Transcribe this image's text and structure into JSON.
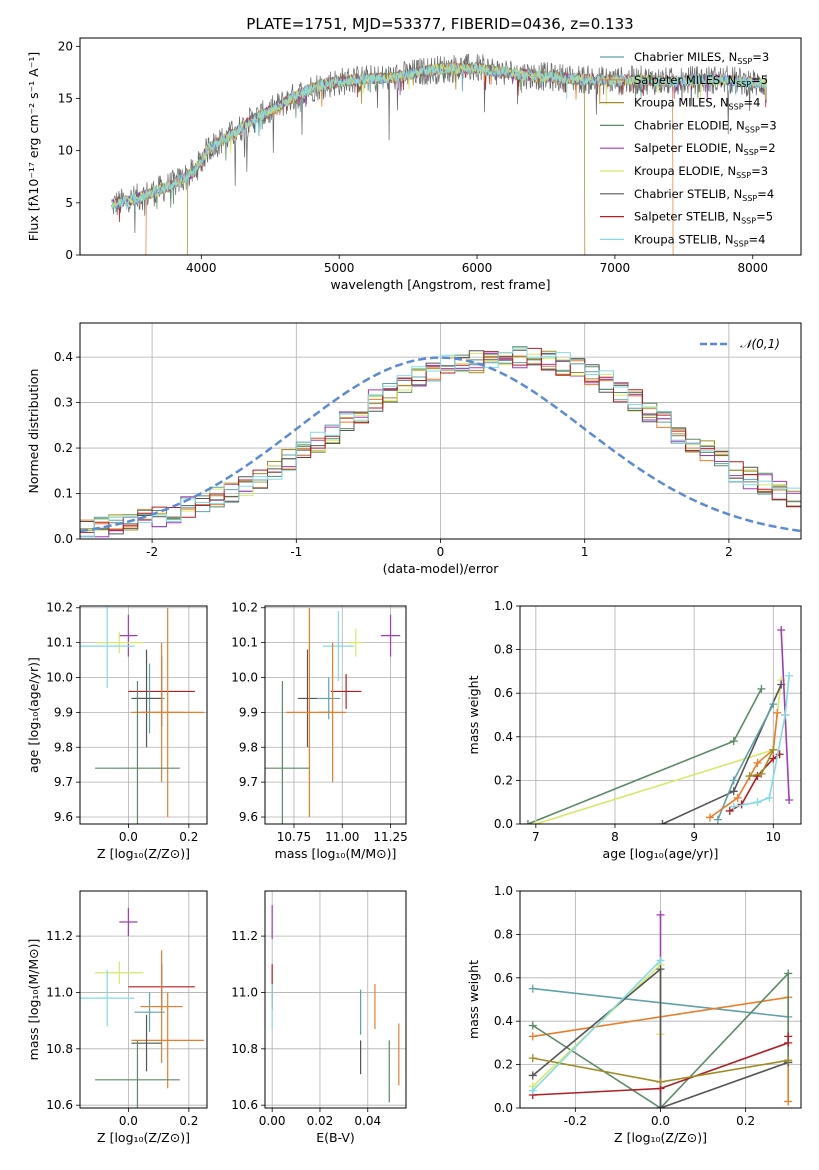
{
  "figure_title": "PLATE=1751, MJD=53377, FIBERID=0436, z=0.133",
  "series_styles": [
    {
      "name": "Chabrier MILES",
      "nssp": "3",
      "color": "#5fa2a8"
    },
    {
      "name": "Salpeter MILES",
      "nssp": "5",
      "color": "#ea7d2b"
    },
    {
      "name": "Kroupa MILES",
      "nssp": "4",
      "color": "#a08c27"
    },
    {
      "name": "Chabrier ELODIE",
      "nssp": "3",
      "color": "#5b8a66"
    },
    {
      "name": "Salpeter ELODIE",
      "nssp": "2",
      "color": "#a03cb4"
    },
    {
      "name": "Kroupa ELODIE",
      "nssp": "3",
      "color": "#d8e86a"
    },
    {
      "name": "Chabrier STELIB",
      "nssp": "4",
      "color": "#555555"
    },
    {
      "name": "Salpeter STELIB",
      "nssp": "5",
      "color": "#b01e24"
    },
    {
      "name": "Kroupa STELIB",
      "nssp": "4",
      "color": "#82dbe3"
    }
  ],
  "chart_data": [
    {
      "id": "spectrum",
      "type": "line",
      "xlabel": "wavelength [Angstrom, rest frame]",
      "ylabel": "Flux [fλ10⁻¹⁷ erg cm⁻² s⁻¹ A⁻¹]",
      "xlim": [
        3120,
        8350
      ],
      "ylim": [
        0,
        20.8
      ],
      "xticks": [
        4000,
        5000,
        6000,
        7000,
        8000
      ],
      "yticks": [
        0,
        5,
        10,
        15,
        20
      ],
      "grid": false,
      "legend": "top-right",
      "legend_entries": [
        "Chabrier MILES, N_SSP=3",
        "Salpeter MILES, N_SSP=5",
        "Kroupa MILES, N_SSP=4",
        "Chabrier ELODIE, N_SSP=3",
        "Salpeter ELODIE, N_SSP=2",
        "Kroupa ELODIE, N_SSP=3",
        "Chabrier STELIB, N_SSP=4",
        "Salpeter STELIB, N_SSP=5",
        "Kroupa STELIB, N_SSP=4"
      ],
      "data_envelope": {
        "x": [
          3350,
          3500,
          3650,
          3800,
          3950,
          4050,
          4150,
          4250,
          4350,
          4500,
          4650,
          4800,
          4950,
          5100,
          5250,
          5400,
          5600,
          5800,
          6000,
          6200,
          6400,
          6600,
          6800,
          7000,
          7200,
          7400,
          7600,
          7800,
          8000,
          8100
        ],
        "y": [
          4.8,
          5.3,
          6.0,
          6.8,
          8.0,
          10.2,
          11.0,
          11.8,
          12.8,
          13.8,
          15.0,
          16.0,
          16.5,
          16.8,
          16.9,
          17.0,
          17.6,
          17.9,
          17.9,
          17.5,
          17.2,
          17.0,
          16.8,
          16.7,
          16.8,
          16.6,
          16.8,
          16.8,
          16.5,
          16.4
        ]
      },
      "model_spans": [
        {
          "series": "Salpeter MILES",
          "x": [
            3600,
            7420
          ]
        },
        {
          "series": "Kroupa MILES",
          "x": [
            3900,
            6780
          ]
        }
      ]
    },
    {
      "id": "residuals",
      "type": "histogram",
      "xlabel": "(data-model)/error",
      "ylabel": "Normed distribution",
      "xlim": [
        -2.5,
        2.5
      ],
      "ylim": [
        0,
        0.475
      ],
      "xticks": [
        -2,
        -1,
        0,
        1,
        2
      ],
      "yticks": [
        0.0,
        0.1,
        0.2,
        0.3,
        0.4
      ],
      "grid": true,
      "legend": "top-right",
      "reference_curve": {
        "name": "𝒩(0,1)",
        "function": "gaussian",
        "mean": 0,
        "sigma": 1,
        "color": "#5b8bd6"
      },
      "bin_width": 0.1,
      "bin_start": -2.5,
      "base_density": [
        0.02,
        0.025,
        0.03,
        0.035,
        0.045,
        0.05,
        0.06,
        0.07,
        0.08,
        0.09,
        0.105,
        0.12,
        0.135,
        0.15,
        0.175,
        0.195,
        0.215,
        0.235,
        0.26,
        0.28,
        0.305,
        0.325,
        0.345,
        0.36,
        0.37,
        0.38,
        0.39,
        0.39,
        0.395,
        0.4,
        0.4,
        0.395,
        0.39,
        0.385,
        0.375,
        0.36,
        0.345,
        0.325,
        0.305,
        0.28,
        0.26,
        0.235,
        0.215,
        0.195,
        0.175,
        0.15,
        0.135,
        0.12,
        0.105,
        0.09,
        0.08,
        0.07,
        0.06,
        0.05,
        0.045,
        0.035,
        0.03,
        0.025,
        0.02,
        0.02
      ]
    },
    {
      "id": "age-vs-Z",
      "type": "errorbar",
      "xlabel": "Z [log₁₀(Z/Z⊙)]",
      "ylabel": "age  [log₁₀(age/yr)]",
      "xlim": [
        -0.16,
        0.26
      ],
      "ylim": [
        9.58,
        10.205
      ],
      "xticks": [
        0.0,
        0.2
      ],
      "yticks": [
        9.6,
        9.7,
        9.8,
        9.9,
        10.0,
        10.1,
        10.2
      ],
      "grid": true,
      "points": [
        {
          "series": "Salpeter ELODIE",
          "x": 0.0,
          "xerr": 0.03,
          "y": 10.12,
          "yerr": 0.06
        },
        {
          "series": "Kroupa ELODIE",
          "x": -0.03,
          "xerr": 0.08,
          "y": 10.1,
          "yerr": 0.03
        },
        {
          "series": "Kroupa STELIB",
          "x": -0.07,
          "xerr": 0.09,
          "y": 10.09,
          "yerr": 0.12
        },
        {
          "series": "Salpeter STELIB",
          "x": 0.11,
          "xerr": 0.11,
          "y": 9.96,
          "yerr": 0.1
        },
        {
          "series": "Chabrier MILES",
          "x": 0.07,
          "xerr": 0.05,
          "y": 9.94,
          "yerr": 0.1
        },
        {
          "series": "Chabrier STELIB",
          "x": 0.06,
          "xerr": 0.05,
          "y": 9.94,
          "yerr": 0.14
        },
        {
          "series": "Salpeter MILES",
          "x": 0.13,
          "xerr": 0.12,
          "y": 9.9,
          "yerr": 0.3
        },
        {
          "series": "Salpeter MILES",
          "x": 0.11,
          "xerr": 0.07,
          "y": 9.9,
          "yerr": 0.2
        },
        {
          "series": "Chabrier ELODIE",
          "x": 0.03,
          "xerr": 0.14,
          "y": 9.74,
          "yerr": 0.25
        }
      ]
    },
    {
      "id": "age-vs-mass",
      "type": "errorbar",
      "xlabel": "mass [log₁₀(M/M⊙)]",
      "ylabel": "",
      "xlim": [
        10.6,
        11.33
      ],
      "ylim": [
        9.58,
        10.205
      ],
      "xticks": [
        10.75,
        11.0,
        11.25
      ],
      "yticks": [
        9.6,
        9.7,
        9.8,
        9.9,
        10.0,
        10.1,
        10.2
      ],
      "grid": true,
      "points": [
        {
          "series": "Salpeter ELODIE",
          "x": 11.25,
          "xerr": 0.05,
          "y": 10.12,
          "yerr": 0.06
        },
        {
          "series": "Kroupa ELODIE",
          "x": 11.07,
          "xerr": 0.04,
          "y": 10.1,
          "yerr": 0.04
        },
        {
          "series": "Kroupa STELIB",
          "x": 10.98,
          "xerr": 0.08,
          "y": 10.09,
          "yerr": 0.1
        },
        {
          "series": "Salpeter STELIB",
          "x": 11.02,
          "xerr": 0.08,
          "y": 9.96,
          "yerr": 0.05
        },
        {
          "series": "Chabrier MILES",
          "x": 10.93,
          "xerr": 0.06,
          "y": 9.94,
          "yerr": 0.06
        },
        {
          "series": "Chabrier STELIB",
          "x": 10.82,
          "xerr": 0.05,
          "y": 9.94,
          "yerr": 0.14
        },
        {
          "series": "Salpeter MILES",
          "x": 10.83,
          "xerr": 0.12,
          "y": 9.9,
          "yerr": 0.3
        },
        {
          "series": "Salpeter MILES",
          "x": 10.95,
          "xerr": 0.07,
          "y": 9.9,
          "yerr": 0.2
        },
        {
          "series": "Chabrier ELODIE",
          "x": 10.69,
          "xerr": 0.14,
          "y": 9.74,
          "yerr": 0.25
        }
      ]
    },
    {
      "id": "weight-vs-age",
      "type": "line",
      "xlabel": "age  [log₁₀(age/yr)]",
      "ylabel": "mass weight",
      "xlim": [
        6.8,
        10.35
      ],
      "ylim": [
        0,
        1.0
      ],
      "xticks": [
        7,
        8,
        9,
        10
      ],
      "yticks": [
        0.0,
        0.2,
        0.4,
        0.6,
        0.8,
        1.0
      ],
      "grid": true,
      "series": [
        {
          "name": "Chabrier ELODIE",
          "x": [
            6.9,
            9.5,
            9.85
          ],
          "y": [
            0.0,
            0.38,
            0.62
          ]
        },
        {
          "name": "Kroupa ELODIE",
          "x": [
            7.0,
            10.0,
            10.1
          ],
          "y": [
            0.0,
            0.34,
            0.66
          ]
        },
        {
          "name": "Chabrier STELIB",
          "x": [
            8.6,
            9.5,
            10.1
          ],
          "y": [
            0.0,
            0.15,
            0.64
          ]
        },
        {
          "name": "Chabrier MILES",
          "x": [
            9.3,
            9.5,
            10.0
          ],
          "y": [
            0.02,
            0.2,
            0.55
          ]
        },
        {
          "name": "Salpeter MILES",
          "x": [
            9.2,
            9.55,
            9.8,
            10.0,
            10.05
          ],
          "y": [
            0.03,
            0.12,
            0.28,
            0.34,
            0.51
          ]
        },
        {
          "name": "Salpeter STELIB",
          "x": [
            9.45,
            9.6,
            9.8,
            10.0,
            10.08
          ],
          "y": [
            0.06,
            0.09,
            0.22,
            0.3,
            0.32
          ]
        },
        {
          "name": "Salpeter ELODIE",
          "x": [
            10.1,
            10.15,
            10.2
          ],
          "y": [
            0.89,
            0.5,
            0.11
          ]
        },
        {
          "name": "Kroupa STELIB",
          "x": [
            9.5,
            9.8,
            9.95,
            10.15,
            10.2
          ],
          "y": [
            0.08,
            0.1,
            0.12,
            0.5,
            0.68
          ]
        },
        {
          "name": "Kroupa MILES",
          "x": [
            9.7,
            9.85,
            10.0
          ],
          "y": [
            0.22,
            0.23,
            0.34
          ]
        }
      ]
    },
    {
      "id": "mass-vs-Z",
      "type": "errorbar",
      "xlabel": "Z [log₁₀(Z/Z⊙)]",
      "ylabel": "mass [log₁₀(M/M⊙)]",
      "xlim": [
        -0.16,
        0.26
      ],
      "ylim": [
        10.59,
        11.36
      ],
      "xticks": [
        0.0,
        0.2
      ],
      "yticks": [
        10.6,
        10.8,
        11.0,
        11.2
      ],
      "grid": true,
      "points": [
        {
          "series": "Salpeter ELODIE",
          "x": 0.0,
          "xerr": 0.03,
          "y": 11.25,
          "yerr": 0.05
        },
        {
          "series": "Kroupa ELODIE",
          "x": -0.03,
          "xerr": 0.08,
          "y": 11.07,
          "yerr": 0.04
        },
        {
          "series": "Salpeter STELIB",
          "x": 0.11,
          "xerr": 0.11,
          "y": 11.02,
          "yerr": 0.08
        },
        {
          "series": "Kroupa STELIB",
          "x": -0.07,
          "xerr": 0.09,
          "y": 10.98,
          "yerr": 0.1
        },
        {
          "series": "Chabrier MILES",
          "x": 0.07,
          "xerr": 0.05,
          "y": 10.93,
          "yerr": 0.07
        },
        {
          "series": "Salpeter MILES",
          "x": 0.11,
          "xerr": 0.07,
          "y": 10.95,
          "yerr": 0.2
        },
        {
          "series": "Salpeter MILES",
          "x": 0.13,
          "xerr": 0.12,
          "y": 10.83,
          "yerr": 0.17
        },
        {
          "series": "Chabrier STELIB",
          "x": 0.06,
          "xerr": 0.05,
          "y": 10.82,
          "yerr": 0.1
        },
        {
          "series": "Chabrier ELODIE",
          "x": 0.03,
          "xerr": 0.14,
          "y": 10.69,
          "yerr": 0.14
        }
      ]
    },
    {
      "id": "mass-vs-ebv",
      "type": "errorbar",
      "xlabel": "E(B-V)",
      "ylabel": "",
      "xlim": [
        -0.003,
        0.056
      ],
      "ylim": [
        10.59,
        11.36
      ],
      "xticks": [
        0.0,
        0.02,
        0.04
      ],
      "yticks": [
        10.6,
        10.8,
        11.0,
        11.2
      ],
      "grid": true,
      "points": [
        {
          "series": "Salpeter ELODIE",
          "x": 0.0,
          "xerr": 0,
          "y": 11.25,
          "yerr": 0.06
        },
        {
          "series": "Salpeter STELIB",
          "x": 0.0,
          "xerr": 0,
          "y": 11.02,
          "yerr": 0.08
        },
        {
          "series": "Kroupa STELIB",
          "x": 0.0,
          "xerr": 0,
          "y": 10.95,
          "yerr": 0.08
        },
        {
          "series": "Chabrier MILES",
          "x": 0.037,
          "xerr": 0,
          "y": 10.93,
          "yerr": 0.08
        },
        {
          "series": "Salpeter MILES",
          "x": 0.043,
          "xerr": 0,
          "y": 10.95,
          "yerr": 0.08
        },
        {
          "series": "Chabrier STELIB",
          "x": 0.037,
          "xerr": 0,
          "y": 10.77,
          "yerr": 0.06
        },
        {
          "series": "Chabrier ELODIE",
          "x": 0.049,
          "xerr": 0,
          "y": 10.72,
          "yerr": 0.11
        },
        {
          "series": "Salpeter MILES",
          "x": 0.053,
          "xerr": 0,
          "y": 10.78,
          "yerr": 0.11
        }
      ]
    },
    {
      "id": "weight-vs-Z",
      "type": "line",
      "xlabel": "Z [log₁₀(Z/Z⊙)]",
      "ylabel": "mass weight",
      "xlim": [
        -0.33,
        0.33
      ],
      "ylim": [
        0,
        1.0
      ],
      "xticks": [
        -0.2,
        0.0,
        0.2
      ],
      "yticks": [
        0.0,
        0.2,
        0.4,
        0.6,
        0.8,
        1.0
      ],
      "grid": true,
      "series": [
        {
          "name": "Chabrier MILES",
          "x": [
            -0.3,
            0.3
          ],
          "y": [
            0.55,
            0.42
          ]
        },
        {
          "name": "Salpeter MILES",
          "x": [
            -0.3,
            0.3,
            0.3
          ],
          "y": [
            0.33,
            0.51,
            0.03
          ]
        },
        {
          "name": "Chabrier ELODIE",
          "x": [
            -0.3,
            0.0,
            0.3,
            0.3
          ],
          "y": [
            0.38,
            0.0,
            0.62,
            0.21
          ]
        },
        {
          "name": "Salpeter ELODIE",
          "x": [
            0.0,
            0.0
          ],
          "y": [
            0.89,
            0.0
          ]
        },
        {
          "name": "Kroupa ELODIE",
          "x": [
            -0.3,
            0.0,
            0.0
          ],
          "y": [
            0.1,
            0.66,
            0.34
          ]
        },
        {
          "name": "Chabrier STELIB",
          "x": [
            -0.3,
            0.0,
            0.0,
            0.3
          ],
          "y": [
            0.15,
            0.64,
            0.0,
            0.21
          ]
        },
        {
          "name": "Salpeter STELIB",
          "x": [
            -0.3,
            0.0,
            0.3,
            0.3
          ],
          "y": [
            0.06,
            0.09,
            0.3,
            0.33
          ]
        },
        {
          "name": "Kroupa MILES",
          "x": [
            -0.3,
            0.0,
            0.3
          ],
          "y": [
            0.23,
            0.12,
            0.22
          ]
        },
        {
          "name": "Kroupa STELIB",
          "x": [
            -0.3,
            0.0
          ],
          "y": [
            0.08,
            0.68
          ]
        }
      ]
    }
  ]
}
